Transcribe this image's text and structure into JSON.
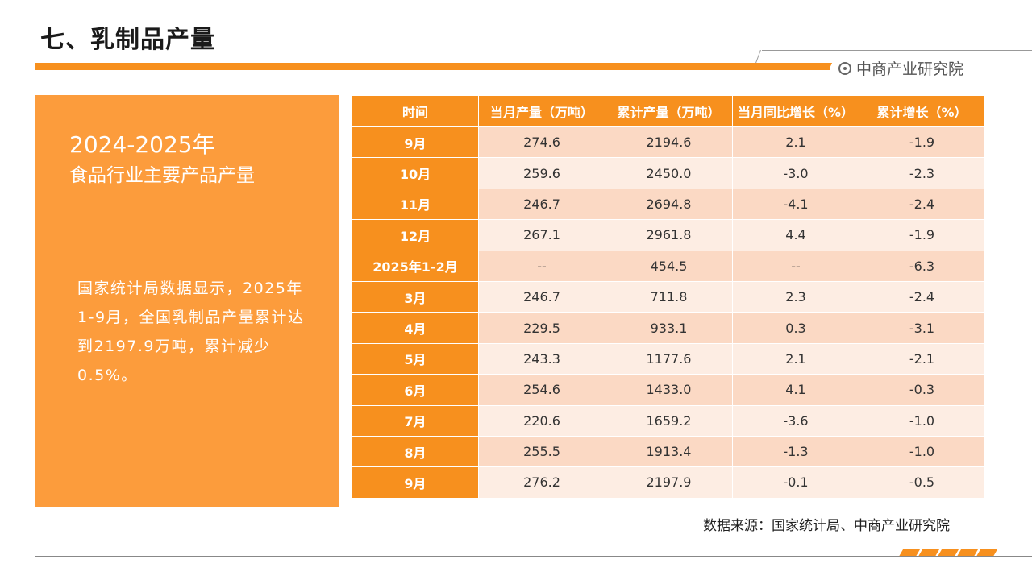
{
  "header": {
    "title": "七、乳制品产量",
    "brand": "中商产业研究院"
  },
  "left_panel": {
    "years": "2024-2025年",
    "subtitle": "食品行业主要产品产量",
    "body": "国家统计局数据显示，2025年1-9月，全国乳制品产量累计达到2197.9万吨，累计减少0.5%。"
  },
  "table": {
    "headers": [
      "时间",
      "当月产量（万吨）",
      "累计产量（万吨）",
      "当月同比增长（%）",
      "累计增长（%）"
    ],
    "rows": [
      [
        "9月",
        "274.6",
        "2194.6",
        "2.1",
        "-1.9"
      ],
      [
        "10月",
        "259.6",
        "2450.0",
        "-3.0",
        "-2.3"
      ],
      [
        "11月",
        "246.7",
        "2694.8",
        "-4.1",
        "-2.4"
      ],
      [
        "12月",
        "267.1",
        "2961.8",
        "4.4",
        "-1.9"
      ],
      [
        "2025年1-2月",
        "--",
        "454.5",
        "--",
        "-6.3"
      ],
      [
        "3月",
        "246.7",
        "711.8",
        "2.3",
        "-2.4"
      ],
      [
        "4月",
        "229.5",
        "933.1",
        "0.3",
        "-3.1"
      ],
      [
        "5月",
        "243.3",
        "1177.6",
        "2.1",
        "-2.1"
      ],
      [
        "6月",
        "254.6",
        "1433.0",
        "4.1",
        "-0.3"
      ],
      [
        "7月",
        "220.6",
        "1659.2",
        "-3.6",
        "-1.0"
      ],
      [
        "8月",
        "255.5",
        "1913.4",
        "-1.3",
        "-1.0"
      ],
      [
        "9月",
        "276.2",
        "2197.9",
        "-0.1",
        "-0.5"
      ]
    ]
  },
  "source": "数据来源：国家统计局、中商产业研究院",
  "colors": {
    "accent": "#F7901E",
    "panel": "#FC9C3C",
    "row_dark": "#FBD9C4",
    "row_light": "#FDEDE3"
  }
}
